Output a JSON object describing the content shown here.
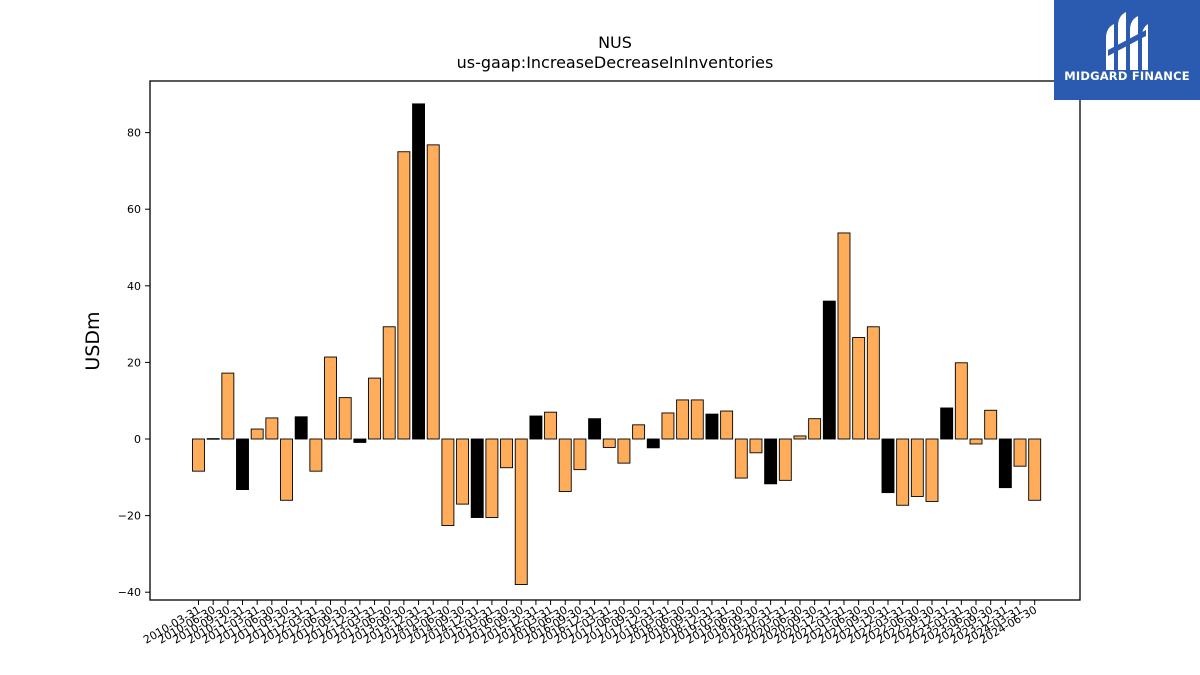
{
  "chart_data": {
    "type": "bar",
    "title": "NUS",
    "subtitle": "us-gaap:IncreaseDecreaseInInventories",
    "ylabel": "USDm",
    "xlabel": "",
    "ylim": [
      -42,
      93
    ],
    "yticks": [
      -40,
      -20,
      0,
      20,
      40,
      60,
      80
    ],
    "grid": false,
    "colors": {
      "primary": "#ffad5b",
      "highlight": "#000000",
      "edge": "#000000"
    },
    "categories": [
      "2010-03-31",
      "2010-06-30",
      "2010-09-30",
      "2010-12-31",
      "2011-03-31",
      "2011-06-30",
      "2011-09-30",
      "2011-12-31",
      "2012-03-31",
      "2012-06-30",
      "2012-09-30",
      "2012-12-31",
      "2013-03-31",
      "2013-06-30",
      "2013-09-30",
      "2013-12-31",
      "2014-03-31",
      "2014-06-30",
      "2014-09-30",
      "2014-12-31",
      "2015-03-31",
      "2015-06-30",
      "2015-09-30",
      "2015-12-31",
      "2016-03-31",
      "2016-06-30",
      "2016-09-30",
      "2016-12-31",
      "2017-03-31",
      "2017-06-30",
      "2017-09-30",
      "2017-12-31",
      "2018-03-31",
      "2018-06-30",
      "2018-09-30",
      "2018-12-31",
      "2019-03-31",
      "2019-06-30",
      "2019-09-30",
      "2019-12-31",
      "2020-03-31",
      "2020-06-30",
      "2020-09-30",
      "2020-12-31",
      "2021-03-31",
      "2021-06-30",
      "2021-09-30",
      "2021-12-31",
      "2022-03-31",
      "2022-06-30",
      "2022-09-30",
      "2022-12-31",
      "2023-03-31",
      "2023-06-30",
      "2023-09-30",
      "2023-12-31",
      "2024-03-31",
      "2024-06-30"
    ],
    "values": [
      -8.4,
      0.1,
      17.2,
      -13.2,
      2.6,
      5.5,
      -16.0,
      5.8,
      -8.4,
      21.4,
      10.8,
      -0.9,
      15.9,
      29.3,
      75.0,
      87.5,
      76.8,
      -22.6,
      -17.0,
      -20.5,
      -20.5,
      -7.5,
      -38.0,
      6.0,
      7.0,
      -13.7,
      -8.0,
      5.3,
      -2.2,
      -6.3,
      3.7,
      -2.3,
      6.8,
      10.2,
      10.2,
      6.5,
      7.3,
      -10.2,
      -3.6,
      -11.7,
      -10.8,
      0.8,
      5.3,
      36.0,
      53.8,
      26.5,
      29.3,
      -14.0,
      -17.3,
      -15.0,
      -16.3,
      8.1,
      19.9,
      -1.3,
      7.5,
      -12.7,
      -7.1,
      -16.0
    ],
    "highlighted": [
      3,
      7,
      11,
      15,
      19,
      23,
      27,
      31,
      35,
      39,
      43,
      47,
      51,
      55
    ]
  },
  "logo": {
    "text": "MIDGARD FINANCE",
    "color": "#2b5bb0"
  }
}
